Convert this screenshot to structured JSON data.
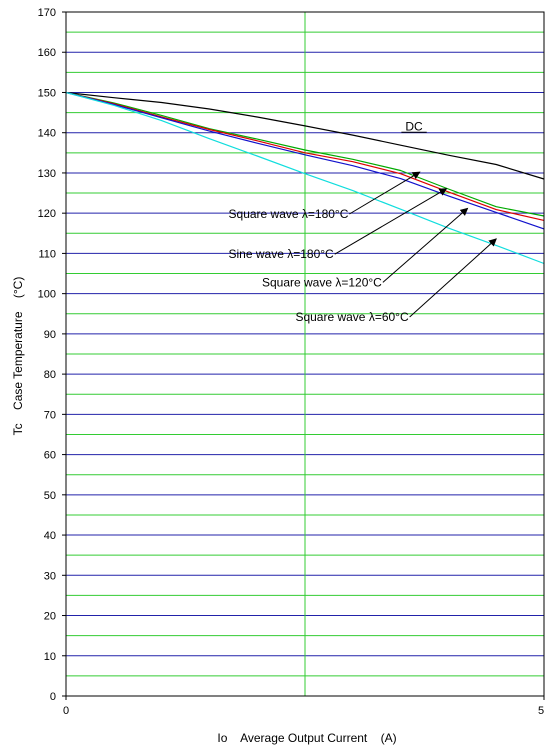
{
  "chart_data": {
    "type": "line",
    "xlabel": "Io    Average Output Current    (A)",
    "ylabel": "Tc    Case Temperature    (°C)",
    "xlim": [
      0,
      5
    ],
    "ylim": [
      0,
      170
    ],
    "x_ticks": [
      0,
      5
    ],
    "x_tick_labels": [
      "0",
      "5"
    ],
    "x_midline": 2.5,
    "y_ticks": [
      0,
      10,
      20,
      30,
      40,
      50,
      60,
      70,
      80,
      90,
      100,
      110,
      120,
      130,
      140,
      150,
      160,
      170
    ],
    "grid": true,
    "grid_colors": {
      "major": "#2222aa",
      "minor": "#33cc33",
      "vertical": "#33cc33"
    },
    "series": [
      {
        "label": "DC",
        "color": "#000000",
        "x": [
          0,
          0.5,
          1.0,
          1.5,
          2.0,
          2.5,
          3.0,
          3.5,
          4.0,
          4.5,
          5.0
        ],
        "y": [
          150,
          148.7,
          147.5,
          145.9,
          143.9,
          141.7,
          139.4,
          136.9,
          134.4,
          132.1,
          128.5
        ]
      },
      {
        "label": "Square wave λ=180°C",
        "color": "#00aa00",
        "x": [
          0,
          0.5,
          1.0,
          1.5,
          2.0,
          2.5,
          3.0,
          3.5,
          4.0,
          4.5,
          5.0
        ],
        "y": [
          150,
          147.4,
          144.3,
          141.0,
          138.4,
          135.7,
          133.4,
          130.6,
          126.0,
          121.6,
          119.3
        ]
      },
      {
        "label": "Sine wave λ=180°C",
        "color": "#dd0000",
        "x": [
          0,
          0.5,
          1.0,
          1.5,
          2.0,
          2.5,
          3.0,
          3.5,
          4.0,
          4.5,
          5.0
        ],
        "y": [
          150,
          147.2,
          143.9,
          140.8,
          138.0,
          135.0,
          132.8,
          129.8,
          125.3,
          120.9,
          118.2
        ]
      },
      {
        "label": "Square wave λ=120°C",
        "color": "#1111cc",
        "x": [
          0,
          0.5,
          1.0,
          1.5,
          2.0,
          2.5,
          3.0,
          3.5,
          4.0,
          4.5,
          5.0
        ],
        "y": [
          150,
          147.0,
          143.7,
          140.4,
          137.4,
          134.5,
          131.8,
          128.6,
          124.3,
          120.2,
          116.1
        ]
      },
      {
        "label": "Square wave λ=60°C",
        "color": "#11dddd",
        "x": [
          0,
          0.5,
          1.0,
          1.5,
          2.0,
          2.5,
          3.0,
          3.5,
          4.0,
          4.5,
          5.0
        ],
        "y": [
          150,
          146.8,
          143.0,
          138.5,
          134.2,
          129.8,
          125.6,
          121.0,
          116.3,
          112.0,
          107.5
        ]
      }
    ],
    "annotations": [
      {
        "text": "DC",
        "x": 3.55,
        "y": 140.6,
        "arrow": false
      },
      {
        "text": "Square wave λ=180°C",
        "x": 1.7,
        "y": 118.8,
        "arrow": true,
        "arrow_to": [
          3.7,
          130.2
        ]
      },
      {
        "text": "Sine wave λ=180°C",
        "x": 1.7,
        "y": 108.8,
        "arrow": true,
        "arrow_to": [
          3.98,
          126.1
        ]
      },
      {
        "text": "Square wave λ=120°C",
        "x": 2.05,
        "y": 101.8,
        "arrow": true,
        "arrow_to": [
          4.2,
          121.2
        ]
      },
      {
        "text": "Square wave λ=60°C",
        "x": 2.4,
        "y": 93.2,
        "arrow": true,
        "arrow_to": [
          4.5,
          113.6
        ]
      }
    ]
  }
}
